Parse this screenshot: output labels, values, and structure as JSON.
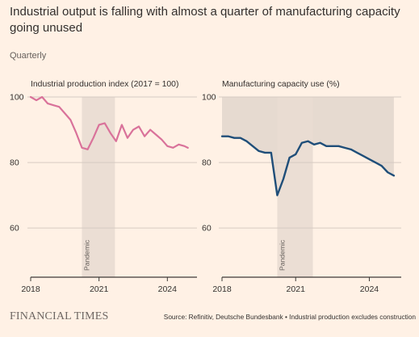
{
  "colors": {
    "background": "#fff1e5",
    "text": "#33302e",
    "muted_text": "#66605c",
    "grid": "#d6cbc2",
    "axis": "#3d3a37",
    "pandemic_shade": "#e9dcd2",
    "capacity_shade": "#e5d8cf",
    "production_line": "#d9729a",
    "capacity_line": "#1f4e79"
  },
  "chart_data": {
    "title": "Industrial output is falling with almost a quarter of manufacturing capacity going unused",
    "subtitle": "Quarterly",
    "source": "Source: Refinitiv, Deutsche Bundesbank • Industrial production excludes construction",
    "publisher": "FINANCIAL TIMES",
    "panels": [
      {
        "type": "line",
        "title": "Industrial production index (2017 = 100)",
        "ylim": [
          45,
          100
        ],
        "yticks": [
          100,
          80,
          60
        ],
        "xticks": [
          2018,
          2021,
          2024
        ],
        "xlim": [
          2018,
          2025.3
        ],
        "pandemic": {
          "start": 2020.25,
          "end": 2021.7,
          "label": "Pandemic"
        },
        "series": [
          {
            "x": [
              2018,
              2018.25,
              2018.5,
              2018.75,
              2019,
              2019.25,
              2019.5,
              2019.75,
              2020,
              2020.25,
              2020.5,
              2020.75,
              2021,
              2021.25,
              2021.5,
              2021.75,
              2022,
              2022.25,
              2022.5,
              2022.75,
              2023,
              2023.25,
              2023.5,
              2023.75,
              2024,
              2024.25,
              2024.5,
              2024.75,
              2024.9
            ],
            "values": [
              100,
              99,
              100,
              98,
              97.5,
              97,
              95,
              93,
              89,
              84.5,
              84,
              87.5,
              91.5,
              92,
              89,
              86.5,
              91.5,
              87.5,
              90,
              91,
              88,
              90,
              88.5,
              87,
              85,
              84.5,
              85.5,
              85,
              84.5
            ]
          }
        ]
      },
      {
        "type": "line",
        "title": "Manufacturing capacity use (%)",
        "ylim": [
          45,
          100
        ],
        "yticks": [
          100,
          80,
          60
        ],
        "xticks": [
          2018,
          2021,
          2024
        ],
        "xlim": [
          2018,
          2025.3
        ],
        "unused_capacity_shading": true,
        "pandemic": {
          "start": 2020.25,
          "end": 2021.7,
          "label": "Pandemic"
        },
        "series": [
          {
            "x": [
              2018,
              2018.25,
              2018.5,
              2018.75,
              2019,
              2019.25,
              2019.5,
              2019.75,
              2020,
              2020.25,
              2020.5,
              2020.75,
              2021,
              2021.25,
              2021.5,
              2021.75,
              2022,
              2022.25,
              2022.5,
              2022.75,
              2023,
              2023.25,
              2023.5,
              2023.75,
              2024,
              2024.25,
              2024.5,
              2024.75,
              2025
            ],
            "values": [
              88,
              88,
              87.5,
              87.5,
              86.5,
              85,
              83.5,
              83,
              83,
              70,
              75,
              81.5,
              82.5,
              86,
              86.5,
              85.5,
              86,
              85,
              85,
              85,
              84.5,
              84,
              83,
              82,
              81,
              80,
              79,
              77,
              76
            ]
          }
        ]
      }
    ]
  }
}
